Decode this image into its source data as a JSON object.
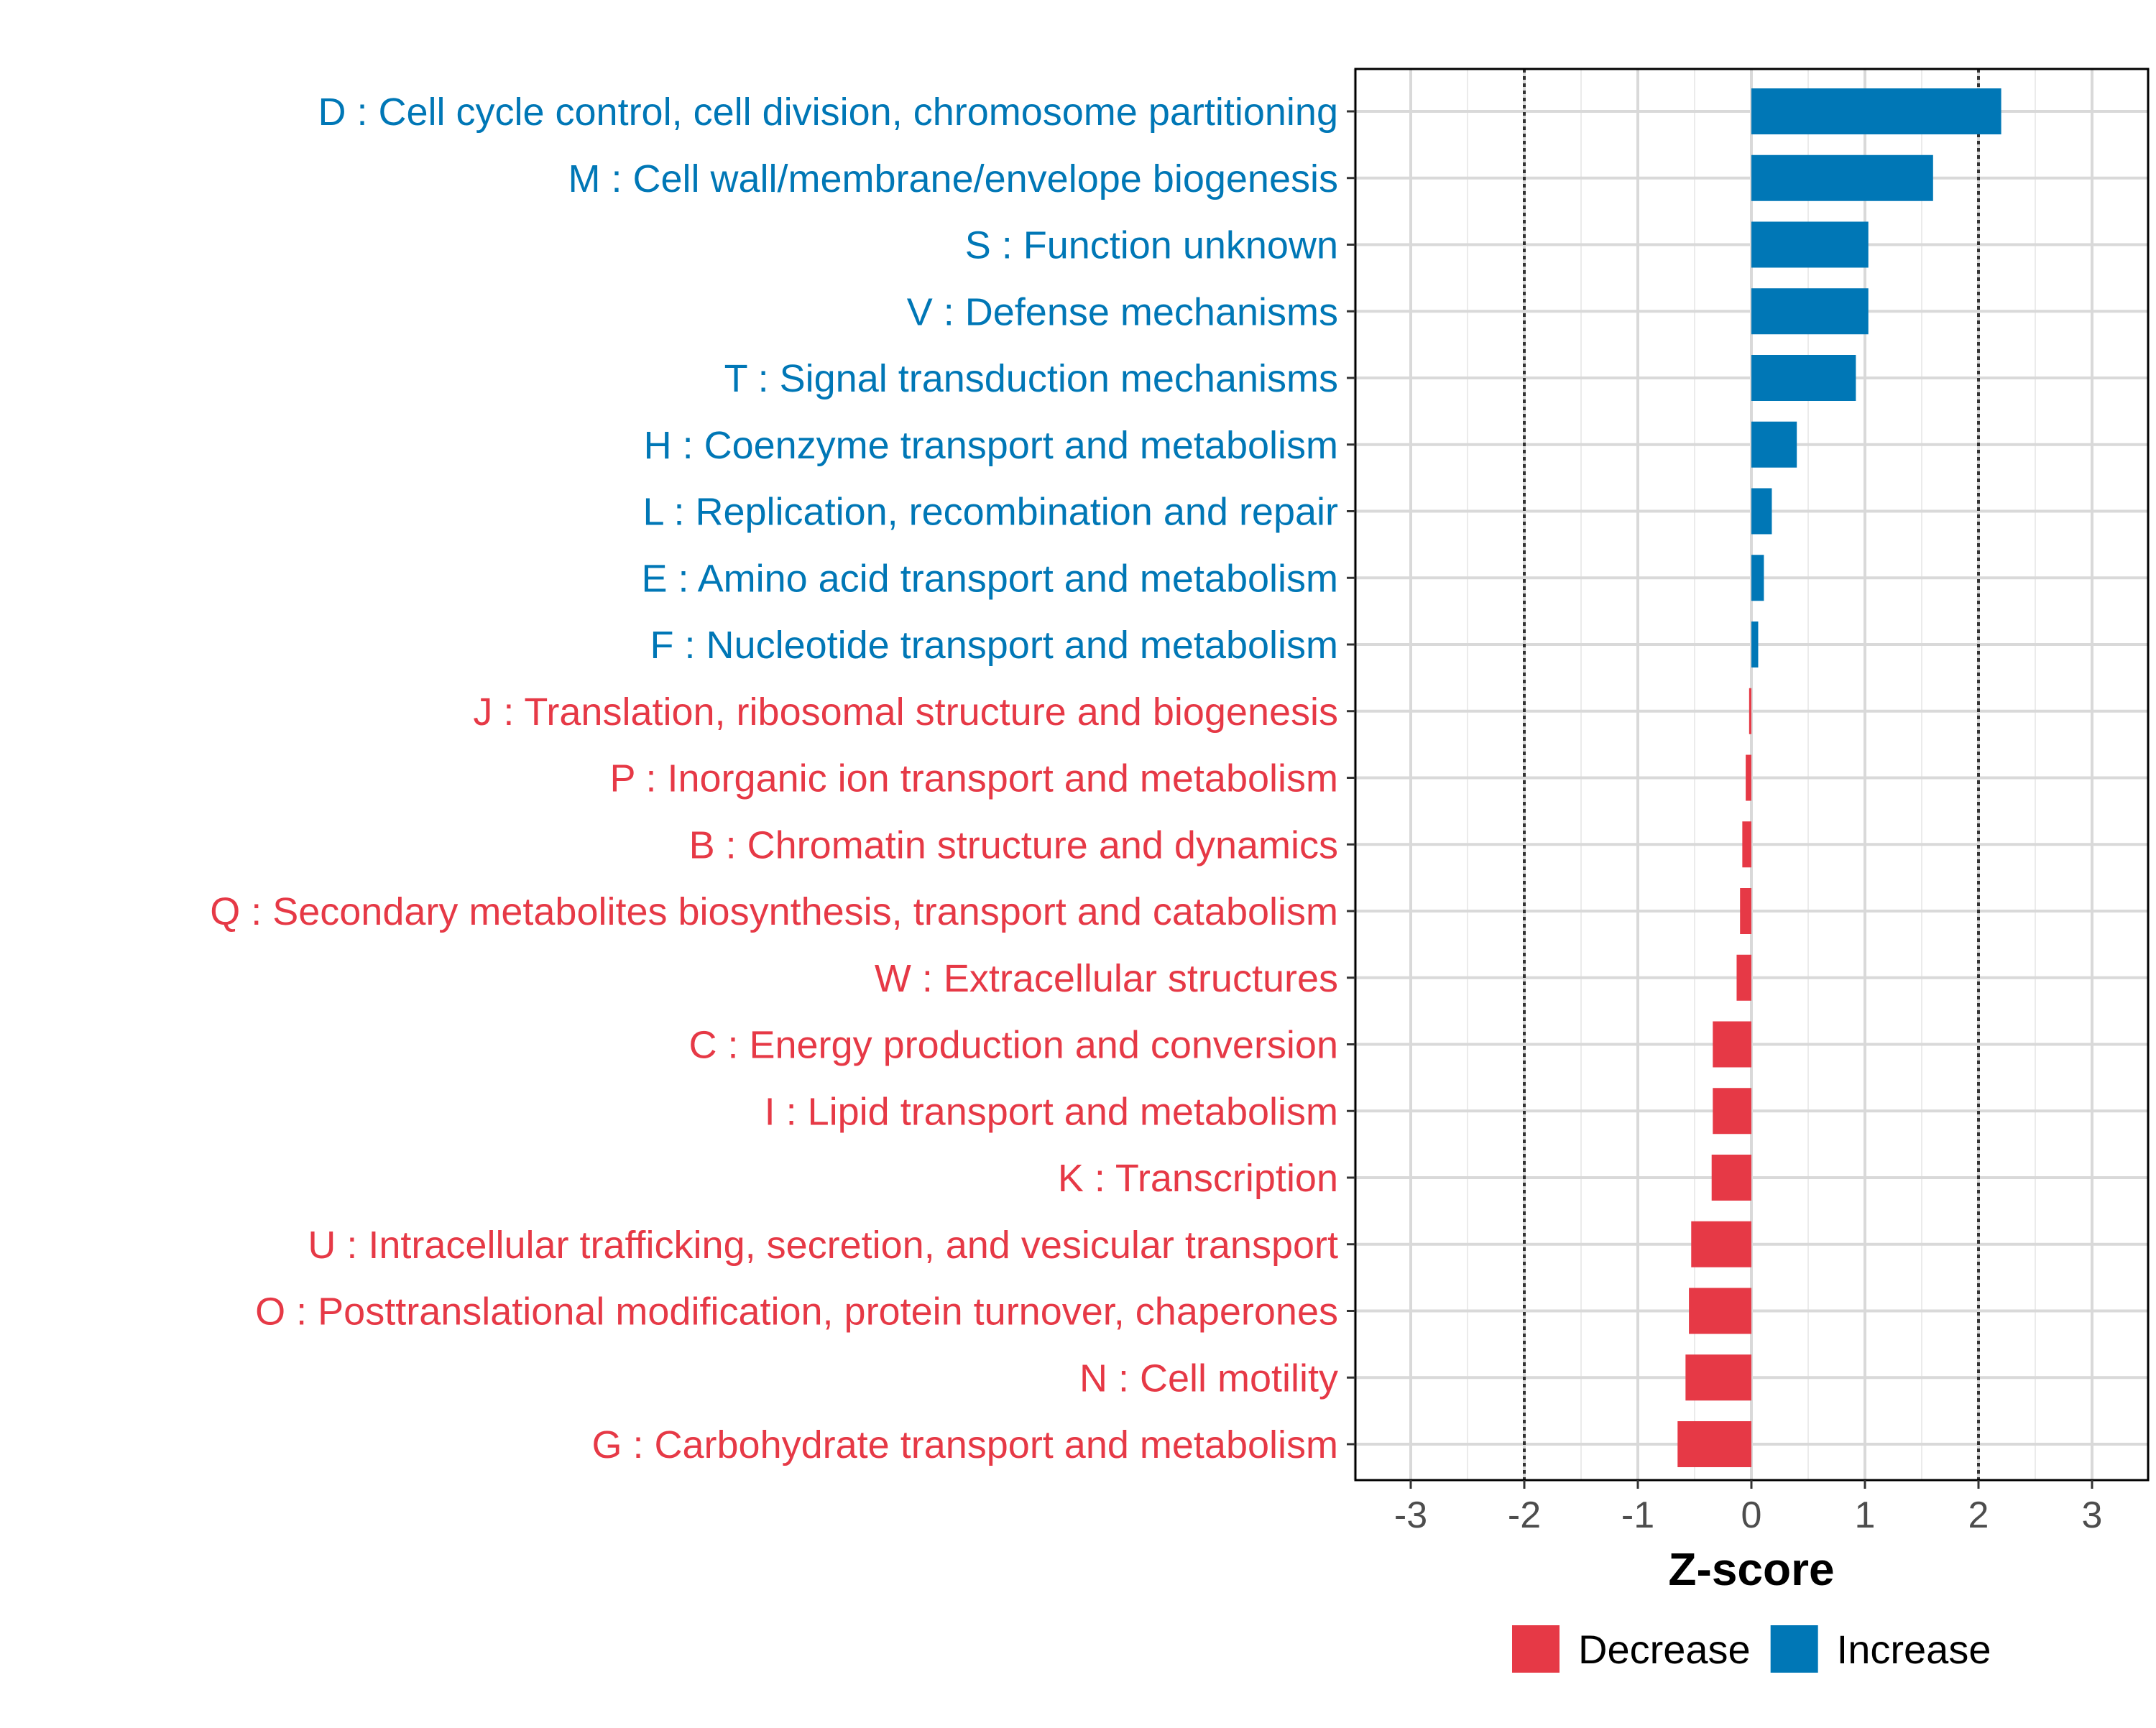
{
  "chart_data": {
    "type": "bar",
    "orientation": "horizontal",
    "title": "",
    "xlabel": "Z-score",
    "ylabel": "",
    "xlim": [
      -3.5,
      3.5
    ],
    "xticks": [
      -3,
      -2,
      -1,
      0,
      1,
      2,
      3
    ],
    "xtick_labels": [
      "-3",
      "-2",
      "-1",
      "0",
      "1",
      "2",
      "3"
    ],
    "reference_lines": [
      -2,
      2
    ],
    "grid": true,
    "legend_position": "bottom",
    "legend": [
      {
        "name": "Decrease",
        "color": "#e63946"
      },
      {
        "name": "Increase",
        "color": "#0077b6"
      }
    ],
    "categories": [
      "D : Cell cycle control, cell division, chromosome partitioning",
      "M : Cell wall/membrane/envelope biogenesis",
      "S : Function unknown",
      "V : Defense mechanisms",
      "T : Signal transduction mechanisms",
      "H : Coenzyme transport and metabolism",
      "L : Replication, recombination and repair",
      "E : Amino acid transport and metabolism",
      "F : Nucleotide transport and metabolism",
      "J : Translation, ribosomal structure and biogenesis",
      "P : Inorganic ion transport and metabolism",
      "B : Chromatin structure and dynamics",
      "Q : Secondary metabolites biosynthesis, transport and catabolism",
      "W : Extracellular structures",
      "C : Energy production and conversion",
      "I : Lipid transport and metabolism",
      "K : Transcription",
      "U : Intracellular trafficking, secretion, and vesicular transport",
      "O : Posttranslational modification, protein turnover, chaperones",
      "N : Cell motility",
      "G : Carbohydrate transport and metabolism"
    ],
    "values": [
      2.2,
      1.6,
      1.03,
      1.03,
      0.92,
      0.4,
      0.18,
      0.11,
      0.06,
      -0.02,
      -0.05,
      -0.08,
      -0.1,
      -0.13,
      -0.34,
      -0.34,
      -0.35,
      -0.53,
      -0.55,
      -0.58,
      -0.65
    ],
    "groups": [
      "Increase",
      "Increase",
      "Increase",
      "Increase",
      "Increase",
      "Increase",
      "Increase",
      "Increase",
      "Increase",
      "Decrease",
      "Decrease",
      "Decrease",
      "Decrease",
      "Decrease",
      "Decrease",
      "Decrease",
      "Decrease",
      "Decrease",
      "Decrease",
      "Decrease",
      "Decrease"
    ]
  }
}
